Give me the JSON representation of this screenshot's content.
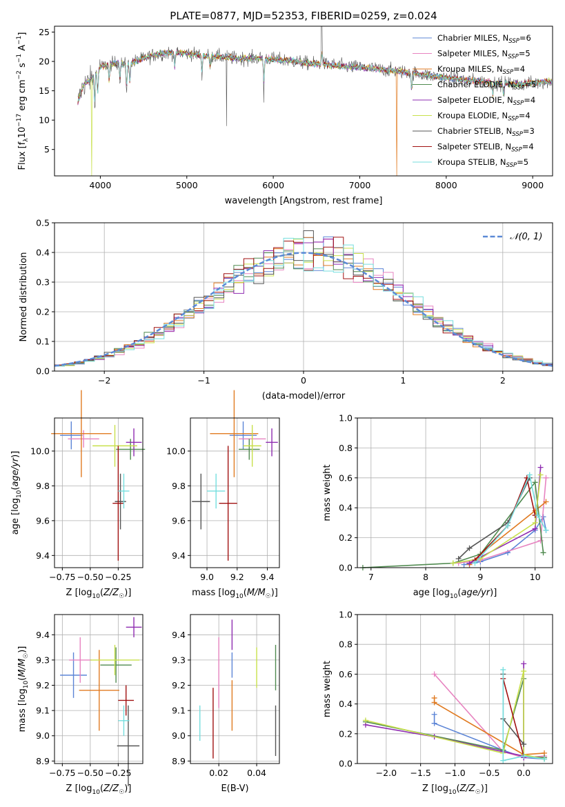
{
  "figure_title": "PLATE=0877, MJD=52353, FIBERID=0259, z=0.024",
  "colors": {
    "Chabrier MILES": "#5b84d6",
    "Salpeter MILES": "#e783c0",
    "Kroupa MILES": "#e07a20",
    "Chabrier ELODIE": "#4f8a4f",
    "Salpeter ELODIE": "#8e2bb0",
    "Kroupa ELODIE": "#c8e04a",
    "Chabrier STELIB": "#555555",
    "Salpeter STELIB": "#a01010",
    "Kroupa STELIB": "#74dede"
  },
  "legend_models": [
    "Chabrier MILES",
    "Salpeter MILES",
    "Kroupa MILES",
    "Chabrier ELODIE",
    "Salpeter ELODIE",
    "Kroupa ELODIE",
    "Chabrier STELIB",
    "Salpeter STELIB",
    "Kroupa STELIB"
  ],
  "chart_data": [
    {
      "id": "spectrum",
      "type": "line",
      "xlabel": "wavelength [Angstrom, rest frame]",
      "ylabel": "Flux [f_λ 10^-17 erg cm^-2 s^-1 A^-1]",
      "xlim": [
        3470,
        9230
      ],
      "ylim": [
        0.5,
        26
      ],
      "xticks": [
        4000,
        5000,
        6000,
        7000,
        8000,
        9000
      ],
      "yticks": [
        5,
        10,
        15,
        20,
        25
      ],
      "grid": false,
      "legend": "top-right",
      "series": [
        {
          "name": "Chabrier MILES, N_SSP=6",
          "nssp": 6
        },
        {
          "name": "Salpeter MILES, N_SSP=5",
          "nssp": 5
        },
        {
          "name": "Kroupa MILES, N_SSP=4",
          "nssp": 4
        },
        {
          "name": "Chabrier ELODIE, N_SSP=5",
          "nssp": 5
        },
        {
          "name": "Salpeter ELODIE, N_SSP=4",
          "nssp": 4
        },
        {
          "name": "Kroupa ELODIE, N_SSP=4",
          "nssp": 4
        },
        {
          "name": "Chabrier STELIB, N_SSP=3",
          "nssp": 3
        },
        {
          "name": "Salpeter STELIB, N_SSP=4",
          "nssp": 4
        },
        {
          "name": "Kroupa STELIB, N_SSP=5",
          "nssp": 5
        }
      ],
      "continuum": {
        "x": [
          3740,
          3800,
          3900,
          4000,
          4100,
          4200,
          4300,
          4400,
          4500,
          4600,
          4700,
          4800,
          5000,
          5200,
          5400,
          5600,
          5800,
          6000,
          6200,
          6400,
          6600,
          6800,
          7000,
          7200,
          7400,
          7600,
          7800,
          8000,
          8200,
          8400,
          8600,
          8800,
          9000,
          9200
        ],
        "y": [
          13,
          16,
          17,
          19,
          19.5,
          19.8,
          19.4,
          20,
          20.5,
          21,
          21.3,
          21.5,
          21.4,
          21,
          20.8,
          20.5,
          20.6,
          20.4,
          20.1,
          19.7,
          19.5,
          19.2,
          19,
          18.7,
          18.4,
          18.1,
          17.6,
          17.2,
          16.9,
          16.6,
          16.3,
          16.1,
          16.3,
          16.6
        ]
      }
    },
    {
      "id": "residuals",
      "type": "histogram",
      "xlabel": "(data-model)/error",
      "ylabel": "Normed distribution",
      "xlim": [
        -2.5,
        2.5
      ],
      "ylim": [
        0,
        0.5
      ],
      "xticks": [
        -2,
        -1,
        0,
        1,
        2
      ],
      "yticks": [
        0.0,
        0.1,
        0.2,
        0.3,
        0.4,
        0.5
      ],
      "grid": true,
      "legend": "top-right",
      "reference_curve": "𝒩(0, 1)",
      "bin_width": 0.1
    },
    {
      "id": "age-vs-Z",
      "type": "scatter",
      "xlabel": "Z [log10(Z/Z☉)]",
      "ylabel": "age [log10(age/yr)]",
      "xlim": [
        -0.82,
        -0.03
      ],
      "ylim": [
        9.33,
        10.19
      ],
      "xticks": [
        -0.75,
        -0.5,
        -0.25
      ],
      "yticks": [
        9.4,
        9.6,
        9.8,
        10.0
      ],
      "grid": true,
      "points": [
        {
          "model": "Chabrier MILES",
          "x": -0.67,
          "y": 10.09,
          "xerr": 0.1,
          "yerr": 0.08
        },
        {
          "model": "Salpeter MILES",
          "x": -0.56,
          "y": 10.07,
          "xerr": 0.14,
          "yerr": 0.05
        },
        {
          "model": "Kroupa MILES",
          "x": -0.58,
          "y": 10.1,
          "xerr": 0.27,
          "yerr": 0.25
        },
        {
          "model": "Chabrier ELODIE",
          "x": -0.14,
          "y": 10.01,
          "xerr": 0.13,
          "yerr": 0.06
        },
        {
          "model": "Salpeter ELODIE",
          "x": -0.11,
          "y": 10.05,
          "xerr": 0.07,
          "yerr": 0.08
        },
        {
          "model": "Kroupa ELODIE",
          "x": -0.28,
          "y": 10.03,
          "xerr": 0.2,
          "yerr": 0.12
        },
        {
          "model": "Chabrier STELIB",
          "x": -0.23,
          "y": 9.71,
          "xerr": 0.05,
          "yerr": 0.16
        },
        {
          "model": "Salpeter STELIB",
          "x": -0.25,
          "y": 9.7,
          "xerr": 0.05,
          "yerr": 0.33
        },
        {
          "model": "Kroupa STELIB",
          "x": -0.2,
          "y": 9.77,
          "xerr": 0.05,
          "yerr": 0.1
        }
      ]
    },
    {
      "id": "age-vs-mass",
      "type": "scatter",
      "xlabel": "mass [log10(M/M☉)]",
      "ylabel": "",
      "xlim": [
        8.89,
        9.48
      ],
      "ylim": [
        9.33,
        10.19
      ],
      "xticks": [
        9.0,
        9.2,
        9.4
      ],
      "yticks": [
        9.4,
        9.6,
        9.8,
        10.0
      ],
      "grid": true,
      "points": [
        {
          "model": "Chabrier MILES",
          "x": 9.24,
          "y": 10.09,
          "xerr": 0.09,
          "yerr": 0.08
        },
        {
          "model": "Salpeter MILES",
          "x": 9.3,
          "y": 10.07,
          "xerr": 0.09,
          "yerr": 0.05
        },
        {
          "model": "Kroupa MILES",
          "x": 9.18,
          "y": 10.1,
          "xerr": 0.16,
          "yerr": 0.25
        },
        {
          "model": "Chabrier ELODIE",
          "x": 9.28,
          "y": 10.01,
          "xerr": 0.07,
          "yerr": 0.06
        },
        {
          "model": "Salpeter ELODIE",
          "x": 9.43,
          "y": 10.05,
          "xerr": 0.04,
          "yerr": 0.08
        },
        {
          "model": "Kroupa ELODIE",
          "x": 9.3,
          "y": 10.03,
          "xerr": 0.06,
          "yerr": 0.12
        },
        {
          "model": "Chabrier STELIB",
          "x": 8.96,
          "y": 9.71,
          "xerr": 0.06,
          "yerr": 0.16
        },
        {
          "model": "Salpeter STELIB",
          "x": 9.14,
          "y": 9.7,
          "xerr": 0.06,
          "yerr": 0.33
        },
        {
          "model": "Kroupa STELIB",
          "x": 9.06,
          "y": 9.77,
          "xerr": 0.06,
          "yerr": 0.1
        }
      ]
    },
    {
      "id": "mass-weight-vs-age",
      "type": "line",
      "xlabel": "age [log10(age/yr)]",
      "ylabel": "mass weight",
      "xlim": [
        6.75,
        10.32
      ],
      "ylim": [
        0,
        1
      ],
      "xticks": [
        7,
        8,
        9,
        10
      ],
      "yticks": [
        0.0,
        0.2,
        0.4,
        0.6,
        0.8,
        1.0
      ],
      "grid": true,
      "series": [
        {
          "model": "Chabrier MILES",
          "points": [
            [
              8.7,
              0.02
            ],
            [
              9.0,
              0.04
            ],
            [
              9.5,
              0.1
            ],
            [
              10.0,
              0.25
            ],
            [
              10.15,
              0.34
            ],
            [
              10.2,
              0.25
            ]
          ]
        },
        {
          "model": "Salpeter MILES",
          "points": [
            [
              8.6,
              0.03
            ],
            [
              9.0,
              0.05
            ],
            [
              10.1,
              0.18
            ],
            [
              10.2,
              0.6
            ]
          ]
        },
        {
          "model": "Kroupa MILES",
          "points": [
            [
              8.8,
              0.02
            ],
            [
              9.0,
              0.09
            ],
            [
              10.0,
              0.38
            ],
            [
              10.2,
              0.44
            ]
          ]
        },
        {
          "model": "Chabrier ELODIE",
          "points": [
            [
              6.85,
              0.0
            ],
            [
              8.5,
              0.03
            ],
            [
              9.0,
              0.09
            ],
            [
              10.0,
              0.57
            ],
            [
              10.15,
              0.1
            ]
          ]
        },
        {
          "model": "Salpeter ELODIE",
          "points": [
            [
              8.8,
              0.03
            ],
            [
              9.0,
              0.07
            ],
            [
              10.0,
              0.26
            ],
            [
              10.1,
              0.67
            ]
          ]
        },
        {
          "model": "Kroupa ELODIE",
          "points": [
            [
              8.5,
              0.03
            ],
            [
              9.0,
              0.06
            ],
            [
              10.0,
              0.3
            ],
            [
              10.1,
              0.62
            ]
          ]
        },
        {
          "model": "Chabrier STELIB",
          "points": [
            [
              8.6,
              0.06
            ],
            [
              8.8,
              0.13
            ],
            [
              9.5,
              0.3
            ],
            [
              9.9,
              0.6
            ]
          ]
        },
        {
          "model": "Salpeter STELIB",
          "points": [
            [
              8.9,
              0.05
            ],
            [
              9.5,
              0.28
            ],
            [
              9.85,
              0.6
            ],
            [
              10.0,
              0.35
            ]
          ]
        },
        {
          "model": "Kroupa STELIB",
          "points": [
            [
              8.9,
              0.03
            ],
            [
              9.5,
              0.28
            ],
            [
              9.9,
              0.62
            ],
            [
              10.05,
              0.35
            ],
            [
              10.2,
              0.25
            ]
          ]
        }
      ]
    },
    {
      "id": "mass-vs-Z",
      "type": "scatter",
      "xlabel": "Z [log10(Z/Z☉)]",
      "ylabel": "mass [log10(M/M☉)]",
      "xlim": [
        -0.82,
        -0.03
      ],
      "ylim": [
        8.89,
        9.48
      ],
      "xticks": [
        -0.75,
        -0.5,
        -0.25
      ],
      "yticks": [
        8.9,
        9.0,
        9.1,
        9.2,
        9.3,
        9.4
      ],
      "grid": true,
      "points": [
        {
          "model": "Chabrier MILES",
          "x": -0.65,
          "y": 9.24,
          "xerr": 0.12,
          "yerr": 0.09
        },
        {
          "model": "Salpeter MILES",
          "x": -0.59,
          "y": 9.3,
          "xerr": 0.1,
          "yerr": 0.09
        },
        {
          "model": "Kroupa MILES",
          "x": -0.42,
          "y": 9.18,
          "xerr": 0.18,
          "yerr": 0.16
        },
        {
          "model": "Chabrier ELODIE",
          "x": -0.27,
          "y": 9.28,
          "xerr": 0.14,
          "yerr": 0.07
        },
        {
          "model": "Salpeter ELODIE",
          "x": -0.11,
          "y": 9.43,
          "xerr": 0.07,
          "yerr": 0.04
        },
        {
          "model": "Kroupa ELODIE",
          "x": -0.28,
          "y": 9.3,
          "xerr": 0.22,
          "yerr": 0.06
        },
        {
          "model": "Chabrier STELIB",
          "x": -0.16,
          "y": 8.96,
          "xerr": 0.1,
          "yerr": 0.16
        },
        {
          "model": "Salpeter STELIB",
          "x": -0.18,
          "y": 9.14,
          "xerr": 0.07,
          "yerr": 0.06
        },
        {
          "model": "Kroupa STELIB",
          "x": -0.2,
          "y": 9.06,
          "xerr": 0.05,
          "yerr": 0.06
        }
      ]
    },
    {
      "id": "mass-vs-EBV",
      "type": "scatter",
      "xlabel": "E(B-V)",
      "ylabel": "",
      "xlim": [
        0.005,
        0.052
      ],
      "ylim": [
        8.89,
        9.48
      ],
      "xticks": [
        0.02,
        0.04
      ],
      "yticks": [
        8.9,
        9.0,
        9.1,
        9.2,
        9.3,
        9.4
      ],
      "grid": true,
      "points": [
        {
          "model": "Chabrier MILES",
          "x": 0.027,
          "y": 9.28,
          "yerr": 0.05
        },
        {
          "model": "Salpeter MILES",
          "x": 0.02,
          "y": 9.25,
          "yerr": 0.14
        },
        {
          "model": "Kroupa MILES",
          "x": 0.027,
          "y": 9.12,
          "yerr": 0.1
        },
        {
          "model": "Chabrier ELODIE",
          "x": 0.05,
          "y": 9.27,
          "yerr": 0.09
        },
        {
          "model": "Salpeter ELODIE",
          "x": 0.027,
          "y": 9.4,
          "yerr": 0.06
        },
        {
          "model": "Kroupa ELODIE",
          "x": 0.04,
          "y": 9.27,
          "yerr": 0.08
        },
        {
          "model": "Chabrier STELIB",
          "x": 0.05,
          "y": 9.02,
          "yerr": 0.1
        },
        {
          "model": "Salpeter STELIB",
          "x": 0.017,
          "y": 9.05,
          "yerr": 0.14
        },
        {
          "model": "Kroupa STELIB",
          "x": 0.01,
          "y": 9.05,
          "yerr": 0.07
        }
      ]
    },
    {
      "id": "mass-weight-vs-Z",
      "type": "line",
      "xlabel": "Z [log10(Z/Z☉)]",
      "ylabel": "mass weight",
      "xlim": [
        -2.42,
        0.42
      ],
      "ylim": [
        0,
        1
      ],
      "xticks": [
        -2.0,
        -1.5,
        -1.0,
        -0.5,
        0.0
      ],
      "yticks": [
        0.0,
        0.2,
        0.4,
        0.6,
        0.8,
        1.0
      ],
      "grid": true,
      "series": [
        {
          "model": "Chabrier MILES",
          "points": [
            [
              -1.3,
              0.33
            ],
            [
              -1.3,
              0.27
            ],
            [
              -0.3,
              0.09
            ],
            [
              0.0,
              0.04
            ],
            [
              0.3,
              0.03
            ]
          ]
        },
        {
          "model": "Salpeter MILES",
          "points": [
            [
              -1.3,
              0.6
            ],
            [
              -0.3,
              0.08
            ],
            [
              0.0,
              0.04
            ],
            [
              0.3,
              0.05
            ]
          ]
        },
        {
          "model": "Kroupa MILES",
          "points": [
            [
              -1.3,
              0.44
            ],
            [
              -1.3,
              0.41
            ],
            [
              0.0,
              0.06
            ],
            [
              0.3,
              0.07
            ]
          ]
        },
        {
          "model": "Chabrier ELODIE",
          "points": [
            [
              -2.3,
              0.28
            ],
            [
              -0.3,
              0.09
            ],
            [
              0.0,
              0.57
            ],
            [
              0.0,
              0.05
            ],
            [
              0.3,
              0.04
            ]
          ]
        },
        {
          "model": "Salpeter ELODIE",
          "points": [
            [
              -2.3,
              0.26
            ],
            [
              -1.3,
              0.18
            ],
            [
              0.0,
              0.05
            ],
            [
              0.0,
              0.67
            ],
            [
              0.0,
              0.04
            ]
          ]
        },
        {
          "model": "Kroupa ELODIE",
          "points": [
            [
              -2.3,
              0.29
            ],
            [
              -0.3,
              0.07
            ],
            [
              0.0,
              0.62
            ],
            [
              0.0,
              0.06
            ],
            [
              0.3,
              0.03
            ]
          ]
        },
        {
          "model": "Chabrier STELIB",
          "points": [
            [
              -0.3,
              0.6
            ],
            [
              -0.3,
              0.3
            ],
            [
              0.0,
              0.13
            ]
          ]
        },
        {
          "model": "Salpeter STELIB",
          "points": [
            [
              -0.3,
              0.57
            ],
            [
              0.0,
              0.05
            ]
          ]
        },
        {
          "model": "Kroupa STELIB",
          "points": [
            [
              -0.3,
              0.63
            ],
            [
              -0.3,
              0.02
            ],
            [
              0.0,
              0.05
            ],
            [
              0.3,
              0.03
            ]
          ]
        }
      ]
    }
  ]
}
